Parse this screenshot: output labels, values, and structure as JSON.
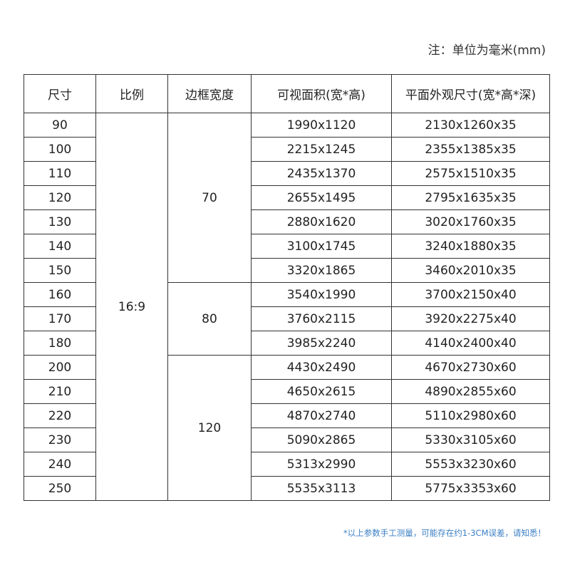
{
  "note": "注：单位为毫米(mm)",
  "table": {
    "headers": [
      "尺寸",
      "比例",
      "边框宽度",
      "可视面积(宽*高)",
      "平面外观尺寸(宽*高*深)"
    ],
    "ratio": "16:9",
    "groups": [
      {
        "bezel": "70",
        "rows": [
          [
            "90",
            "1990x1120",
            "2130x1260x35"
          ],
          [
            "100",
            "2215x1245",
            "2355x1385x35"
          ],
          [
            "110",
            "2435x1370",
            "2575x1510x35"
          ],
          [
            "120",
            "2655x1495",
            "2795x1635x35"
          ],
          [
            "130",
            "2880x1620",
            "3020x1760x35"
          ],
          [
            "140",
            "3100x1745",
            "3240x1880x35"
          ],
          [
            "150",
            "3320x1865",
            "3460x2010x35"
          ]
        ]
      },
      {
        "bezel": "80",
        "rows": [
          [
            "160",
            "3540x1990",
            "3700x2150x40"
          ],
          [
            "170",
            "3760x2115",
            "3920x2275x40"
          ],
          [
            "180",
            "3985x2240",
            "4140x2400x40"
          ]
        ]
      },
      {
        "bezel": "120",
        "rows": [
          [
            "200",
            "4430x2490",
            "4670x2730x60"
          ],
          [
            "210",
            "4650x2615",
            "4890x2855x60"
          ],
          [
            "220",
            "4870x2740",
            "5110x2980x60"
          ],
          [
            "230",
            "5090x2865",
            "5330x3105x60"
          ],
          [
            "240",
            "5313x2990",
            "5553x3230x60"
          ],
          [
            "250",
            "5535x3113",
            "5775x3353x60"
          ]
        ]
      }
    ]
  },
  "footer": "*以上参数手工测量，可能存在约1-3CM误差，请知悉！"
}
